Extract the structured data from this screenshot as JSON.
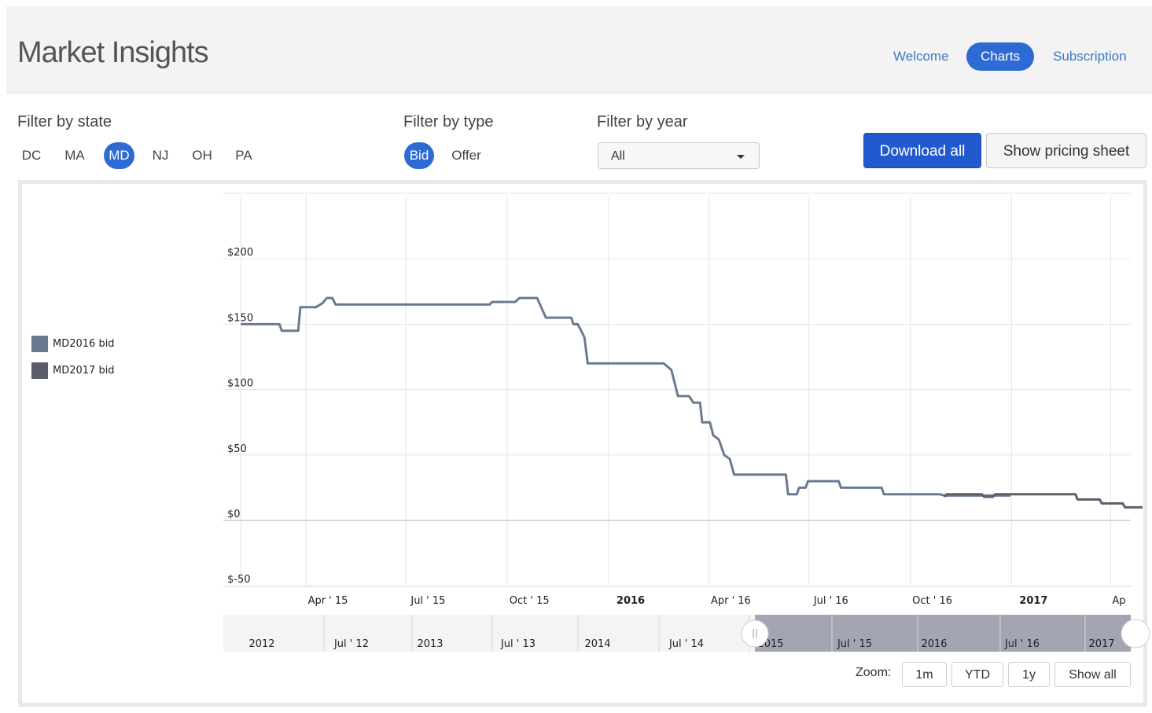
{
  "header": {
    "title": "Market Insights",
    "nav": [
      {
        "label": "Welcome",
        "active": false
      },
      {
        "label": "Charts",
        "active": true
      },
      {
        "label": "Subscription",
        "active": false
      }
    ]
  },
  "filters": {
    "state_label": "Filter by state",
    "states": [
      {
        "label": "DC",
        "active": false
      },
      {
        "label": "MA",
        "active": false
      },
      {
        "label": "MD",
        "active": true
      },
      {
        "label": "NJ",
        "active": false
      },
      {
        "label": "OH",
        "active": false
      },
      {
        "label": "PA",
        "active": false
      }
    ],
    "type_label": "Filter by type",
    "types": [
      {
        "label": "Bid",
        "active": true
      },
      {
        "label": "Offer",
        "active": false
      }
    ],
    "year_label": "Filter by year",
    "year_value": "All"
  },
  "actions": {
    "download_label": "Download all",
    "pricing_label": "Show pricing sheet"
  },
  "legend": [
    {
      "label": "MD2016 bid",
      "color": "#6b7a93"
    },
    {
      "label": "MD2017 bid",
      "color": "#5c5f6b"
    }
  ],
  "zoom": {
    "label": "Zoom:",
    "buttons": [
      "1m",
      "YTD",
      "1y",
      "Show all"
    ]
  },
  "chart_data": {
    "type": "line",
    "y_ticks": [
      "$200",
      "$150",
      "$100",
      "$50",
      "$0",
      "$-50"
    ],
    "ylim": [
      -50,
      250
    ],
    "x_ticks": [
      "Apr ' 15",
      "Jul ' 15",
      "Oct ' 15",
      "2016",
      "Apr ' 16",
      "Jul ' 16",
      "Oct ' 16",
      "2017",
      "Ap"
    ],
    "x_tick_bold": [
      "2016",
      "2017"
    ],
    "navigator_ticks": [
      "2012",
      "Jul ' 12",
      "2013",
      "Jul ' 13",
      "2014",
      "Jul ' 14",
      "2015",
      "Jul ' 15",
      "2016",
      "Jul ' 16",
      "2017"
    ],
    "series": [
      {
        "name": "MD2016 bid",
        "color": "#6b7a93",
        "points": [
          [
            "2015-02-01",
            150
          ],
          [
            "2015-03-08",
            150
          ],
          [
            "2015-03-10",
            145
          ],
          [
            "2015-03-25",
            145
          ],
          [
            "2015-03-27",
            163
          ],
          [
            "2015-04-10",
            163
          ],
          [
            "2015-04-16",
            166
          ],
          [
            "2015-04-20",
            170
          ],
          [
            "2015-04-25",
            170
          ],
          [
            "2015-04-28",
            165
          ],
          [
            "2015-09-15",
            165
          ],
          [
            "2015-09-17",
            167
          ],
          [
            "2015-10-08",
            167
          ],
          [
            "2015-10-12",
            170
          ],
          [
            "2015-10-28",
            170
          ],
          [
            "2015-11-05",
            155
          ],
          [
            "2015-11-28",
            155
          ],
          [
            "2015-11-30",
            150
          ],
          [
            "2015-12-04",
            150
          ],
          [
            "2015-12-10",
            140
          ],
          [
            "2015-12-13",
            120
          ],
          [
            "2016-02-20",
            120
          ],
          [
            "2016-02-27",
            115
          ],
          [
            "2016-03-04",
            95
          ],
          [
            "2016-03-14",
            95
          ],
          [
            "2016-03-18",
            90
          ],
          [
            "2016-03-24",
            90
          ],
          [
            "2016-03-26",
            75
          ],
          [
            "2016-04-02",
            75
          ],
          [
            "2016-04-05",
            65
          ],
          [
            "2016-04-10",
            62
          ],
          [
            "2016-04-15",
            50
          ],
          [
            "2016-04-20",
            47
          ],
          [
            "2016-04-24",
            35
          ],
          [
            "2016-06-10",
            35
          ],
          [
            "2016-06-12",
            20
          ],
          [
            "2016-06-20",
            20
          ],
          [
            "2016-06-22",
            25
          ],
          [
            "2016-06-28",
            25
          ],
          [
            "2016-06-30",
            30
          ],
          [
            "2016-07-28",
            30
          ],
          [
            "2016-07-30",
            25
          ],
          [
            "2016-09-05",
            25
          ],
          [
            "2016-09-07",
            20
          ],
          [
            "2016-10-28",
            20
          ],
          [
            "2016-11-01",
            19
          ],
          [
            "2016-12-31",
            19
          ]
        ]
      },
      {
        "name": "MD2017 bid",
        "color": "#5c5f6b",
        "points": [
          [
            "2016-11-01",
            18
          ],
          [
            "2016-11-03",
            20
          ],
          [
            "2016-12-05",
            20
          ],
          [
            "2016-12-07",
            18
          ],
          [
            "2016-12-15",
            18
          ],
          [
            "2016-12-17",
            20
          ],
          [
            "2017-02-28",
            20
          ],
          [
            "2017-03-02",
            16
          ],
          [
            "2017-03-22",
            16
          ],
          [
            "2017-03-24",
            13
          ],
          [
            "2017-04-12",
            13
          ],
          [
            "2017-04-14",
            10
          ],
          [
            "2017-04-30",
            10
          ]
        ]
      }
    ],
    "navigator_selected": "2015 onward"
  }
}
